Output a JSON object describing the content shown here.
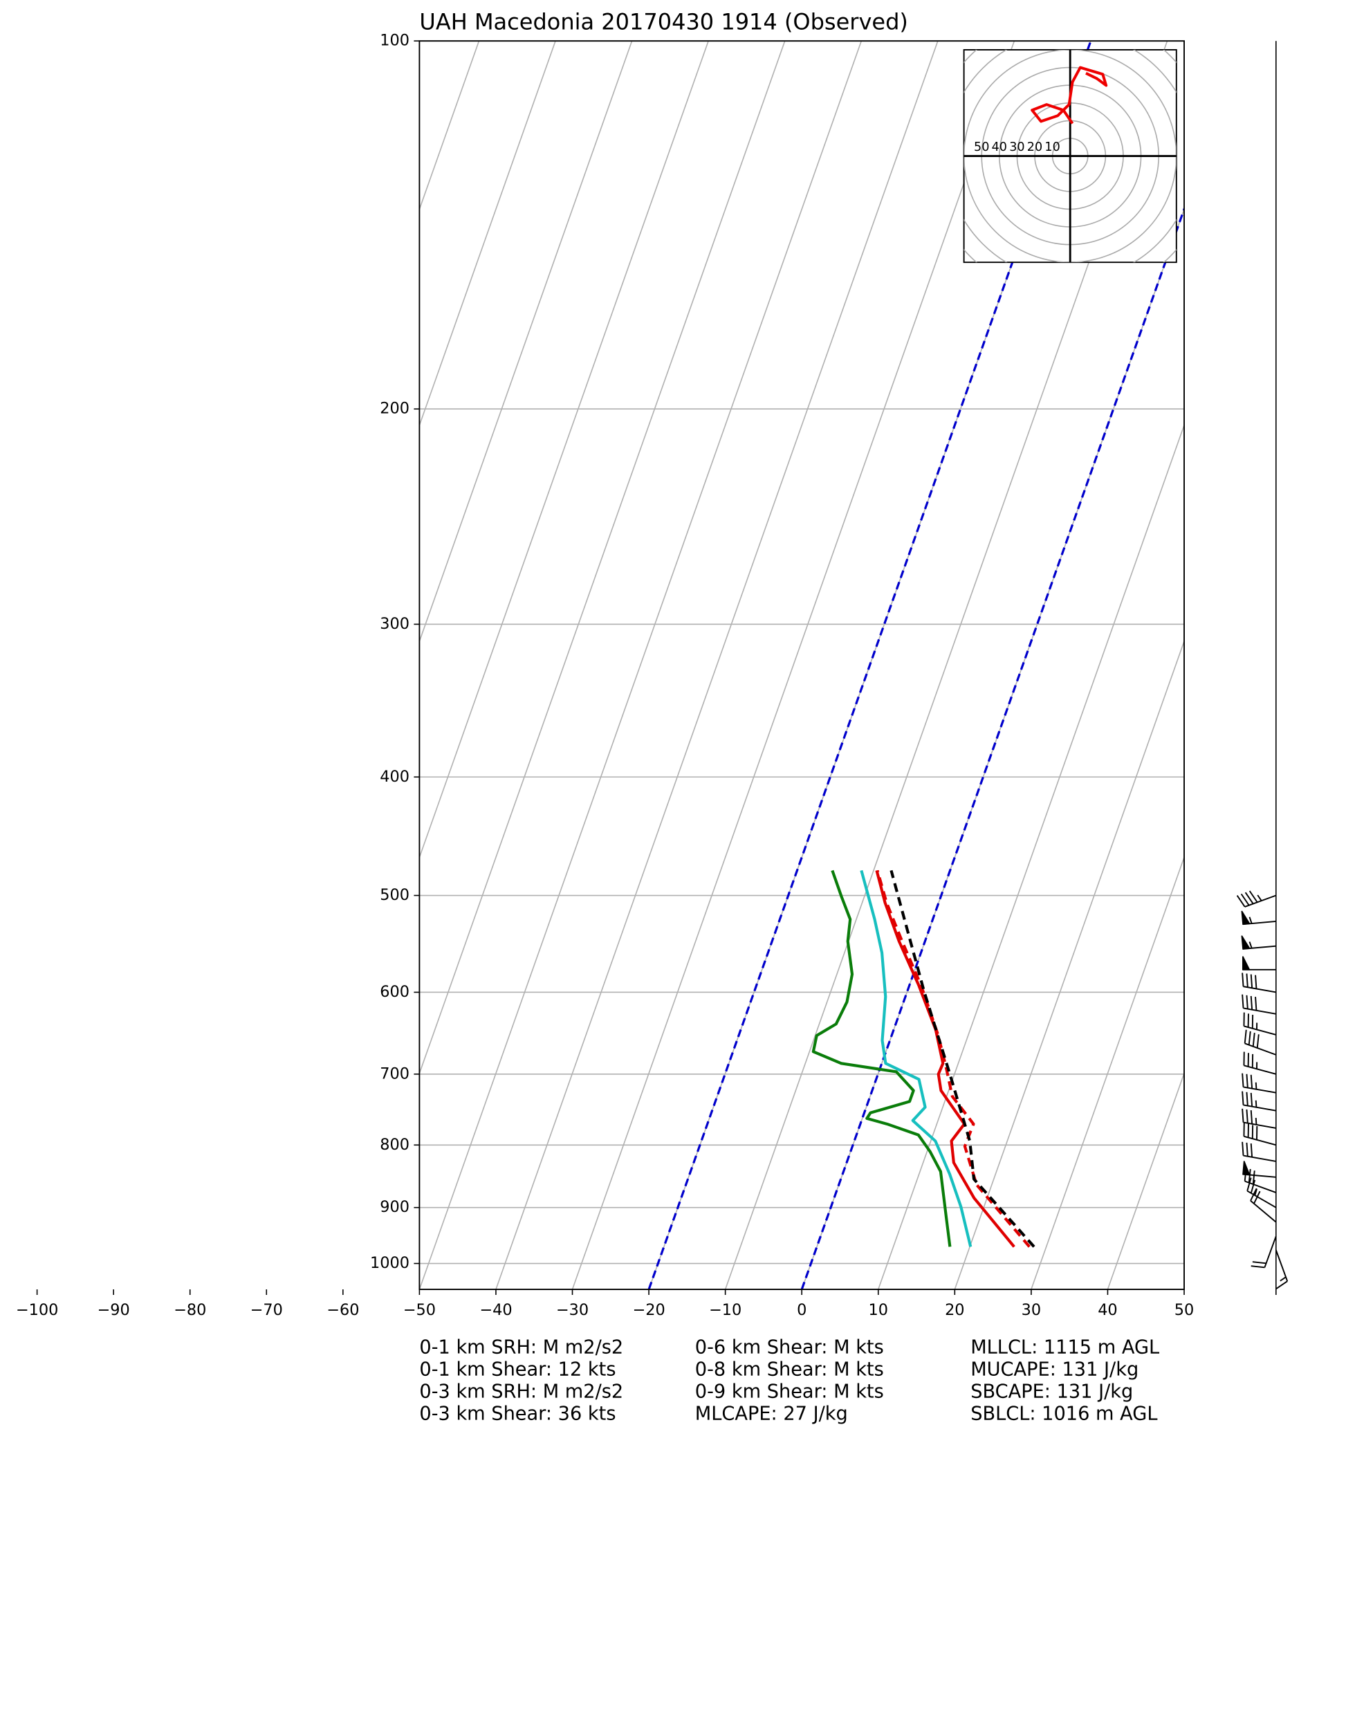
{
  "chart_data": {
    "type": "skewt",
    "title": "UAH Macedonia 20170430 1914   (Observed)",
    "xlim": [
      -50,
      50
    ],
    "xticks": [
      {
        "value": -100,
        "label": "−100"
      },
      {
        "value": -90,
        "label": "−90"
      },
      {
        "value": -80,
        "label": "−80"
      },
      {
        "value": -70,
        "label": "−70"
      },
      {
        "value": -60,
        "label": "−60"
      },
      {
        "value": -50,
        "label": "−50"
      },
      {
        "value": -40,
        "label": "−40"
      },
      {
        "value": -30,
        "label": "−30"
      },
      {
        "value": -20,
        "label": "−20"
      },
      {
        "value": -10,
        "label": "−10"
      },
      0,
      10,
      20,
      30,
      40,
      50
    ],
    "ylim": [
      1050,
      100
    ],
    "yscale": "log",
    "yticks": [
      100,
      200,
      300,
      400,
      500,
      600,
      700,
      800,
      900,
      1000
    ],
    "grid": true,
    "isotherms": [
      -100,
      -90,
      -80,
      -70,
      -60,
      -50,
      -40,
      -30,
      -20,
      -10,
      0,
      10,
      20,
      30,
      40
    ],
    "highlighted_isotherms": [
      -20,
      0
    ],
    "highlight_color": "#0000cc",
    "series": [
      {
        "name": "temperature",
        "color": "#e00000",
        "dash": false,
        "pressure": [
          969,
          884,
          827,
          794,
          769,
          722,
          700,
          686,
          644,
          592,
          545,
          507,
          477
        ],
        "values": [
          25.8,
          18.3,
          14.0,
          12.7,
          13.6,
          9.0,
          7.9,
          8.0,
          5.5,
          1.2,
          -3.4,
          -7.0,
          -9.6
        ]
      },
      {
        "name": "virtual temperature",
        "color": "#e00000",
        "dash": true,
        "pressure": [
          969,
          862,
          802,
          769,
          730,
          693,
          651,
          592,
          545,
          507,
          477
        ],
        "values": [
          27.8,
          18.0,
          14.7,
          14.8,
          10.75,
          8.7,
          6.1,
          1.5,
          -3.0,
          -6.8,
          -9.5
        ]
      },
      {
        "name": "wet bulb",
        "color": "#17bfbf",
        "dash": false,
        "pressure": [
          969,
          899,
          845,
          794,
          764,
          745,
          707,
          686,
          657,
          605,
          557,
          523,
          477
        ],
        "values": [
          20.1,
          17.0,
          14.0,
          10.6,
          6.7,
          7.7,
          5.6,
          0.5,
          -1.0,
          -2.6,
          -5.1,
          -7.6,
          -11.6
        ]
      },
      {
        "name": "dewpoint",
        "color": "#0a7d0a",
        "dash": false,
        "pressure": [
          969,
          918,
          841,
          810,
          785,
          769,
          761,
          753,
          737,
          722,
          697,
          686,
          671,
          651,
          637,
          611,
          580,
          545,
          523,
          501,
          477
        ],
        "values": [
          17.4,
          15.6,
          12.7,
          10.4,
          8.1,
          3.5,
          0.6,
          0.8,
          5.4,
          5.4,
          2.3,
          -5.3,
          -9.5,
          -9.8,
          -7.8,
          -7.4,
          -8.0,
          -10.1,
          -10.8,
          -13.0,
          -15.4
        ]
      },
      {
        "name": "parcel",
        "color": "#000000",
        "dash": true,
        "pressure": [
          969,
          853,
          794,
          700,
          599,
          534,
          477
        ],
        "values": [
          28.4,
          17.4,
          15.1,
          9.4,
          2.2,
          -2.8,
          -7.7
        ]
      }
    ],
    "hodograph": {
      "xlim": [
        -60,
        60
      ],
      "ylim": [
        -60,
        60
      ],
      "rings": [
        10,
        20,
        30,
        40,
        50,
        60,
        70,
        80
      ],
      "color": "#ee0000",
      "u": [
        1.3,
        -3.8,
        -13.3,
        -21.5,
        -16.5,
        -7,
        -0.6,
        1.3,
        5.7,
        12,
        18.4,
        20.3,
        15.2,
        8.9
      ],
      "v": [
        18.4,
        25.9,
        29.1,
        25.9,
        19.6,
        22.8,
        29.1,
        41.8,
        50,
        48.1,
        46.2,
        39.9,
        43.7,
        46.8
      ]
    },
    "wind_barbs": {
      "pressure": [
        500,
        525,
        550,
        575,
        600,
        625,
        650,
        675,
        700,
        725,
        750,
        775,
        800,
        825,
        850,
        875,
        900,
        925,
        950,
        975
      ],
      "speed": [
        45,
        55,
        55,
        50,
        40,
        40,
        35,
        40,
        35,
        35,
        35,
        35,
        40,
        30,
        50,
        30,
        25,
        20,
        20,
        15
      ],
      "direction": [
        250,
        265,
        265,
        270,
        280,
        280,
        285,
        290,
        285,
        280,
        280,
        280,
        285,
        280,
        275,
        290,
        300,
        310,
        200,
        160
      ]
    },
    "stats": [
      [
        "0-1 km SRH: M m2/s2",
        "0-1 km Shear: 12 kts",
        "0-3 km SRH: M m2/s2",
        "0-3 km Shear: 36 kts"
      ],
      [
        "0-6 km Shear: M kts",
        "0-8 km Shear: M kts",
        "0-9 km Shear: M kts",
        "MLCAPE: 27 J/kg"
      ],
      [
        "MLLCL: 1115 m AGL",
        "MUCAPE: 131 J/kg",
        "SBCAPE: 131 J/kg",
        "SBLCL: 1016 m AGL"
      ]
    ]
  }
}
